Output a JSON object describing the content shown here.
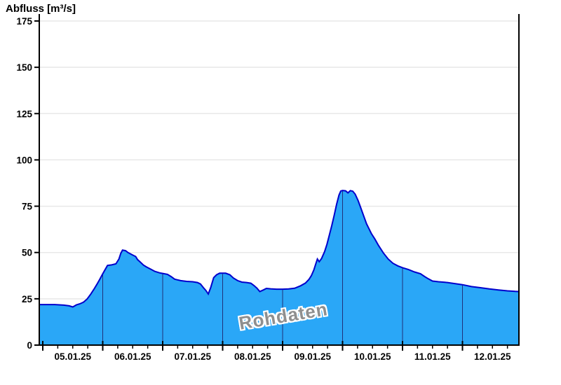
{
  "header": {
    "title": "Abfluss [m³/s]"
  },
  "watermark": {
    "text": "Rohdaten",
    "color": "#8f8f8f"
  },
  "chart_data": {
    "type": "area",
    "title": "Abfluss [m³/s]",
    "ylabel": "Abfluss [m³/s]",
    "xlabel": "",
    "ylim": [
      0,
      178
    ],
    "y_ticks": [
      0,
      25,
      50,
      75,
      100,
      125,
      150,
      175
    ],
    "x_tick_labels": [
      "05.01.25",
      "06.01.25",
      "07.01.25",
      "08.01.25",
      "09.01.25",
      "10.01.25",
      "11.01.25",
      "12.01.25"
    ],
    "x_range_days": [
      -0.06,
      7.94
    ],
    "grid": "horizontal-light",
    "legend": "none",
    "colors": {
      "fill": "#2aa7f7",
      "outline": "#0000cc",
      "day_line": "#20307a",
      "grid": "#e8e8e8",
      "axis": "#000000",
      "text": "#000000",
      "background": "#ffffff"
    },
    "series": [
      {
        "name": "Abfluss Rohdaten",
        "unit": "m³/s",
        "points": [
          [
            -0.06,
            21.9
          ],
          [
            0.05,
            21.9
          ],
          [
            0.2,
            21.9
          ],
          [
            0.35,
            21.6
          ],
          [
            0.44,
            21.2
          ],
          [
            0.5,
            20.6
          ],
          [
            0.56,
            21.7
          ],
          [
            0.62,
            22.3
          ],
          [
            0.68,
            23.2
          ],
          [
            0.74,
            24.9
          ],
          [
            0.8,
            27.5
          ],
          [
            0.85,
            30.0
          ],
          [
            0.9,
            32.6
          ],
          [
            0.95,
            35.5
          ],
          [
            1.0,
            38.5
          ],
          [
            1.04,
            40.8
          ],
          [
            1.08,
            43.0
          ],
          [
            1.15,
            43.3
          ],
          [
            1.22,
            43.9
          ],
          [
            1.27,
            46.5
          ],
          [
            1.3,
            49.5
          ],
          [
            1.33,
            51.3
          ],
          [
            1.38,
            51.0
          ],
          [
            1.42,
            50.0
          ],
          [
            1.5,
            48.6
          ],
          [
            1.55,
            47.8
          ],
          [
            1.58,
            46.2
          ],
          [
            1.62,
            45.0
          ],
          [
            1.68,
            43.2
          ],
          [
            1.73,
            42.2
          ],
          [
            1.8,
            41.0
          ],
          [
            1.87,
            39.8
          ],
          [
            1.95,
            39.0
          ],
          [
            2.0,
            38.7
          ],
          [
            2.08,
            38.2
          ],
          [
            2.14,
            37.0
          ],
          [
            2.2,
            35.6
          ],
          [
            2.3,
            34.8
          ],
          [
            2.4,
            34.4
          ],
          [
            2.5,
            34.2
          ],
          [
            2.58,
            33.8
          ],
          [
            2.63,
            33.0
          ],
          [
            2.68,
            31.0
          ],
          [
            2.72,
            29.5
          ],
          [
            2.76,
            27.6
          ],
          [
            2.8,
            31.0
          ],
          [
            2.85,
            36.4
          ],
          [
            2.9,
            38.0
          ],
          [
            2.95,
            38.8
          ],
          [
            3.05,
            38.8
          ],
          [
            3.12,
            38.0
          ],
          [
            3.18,
            36.2
          ],
          [
            3.25,
            34.8
          ],
          [
            3.32,
            34.0
          ],
          [
            3.4,
            33.8
          ],
          [
            3.47,
            33.4
          ],
          [
            3.52,
            32.2
          ],
          [
            3.57,
            30.8
          ],
          [
            3.62,
            28.9
          ],
          [
            3.68,
            29.8
          ],
          [
            3.73,
            30.6
          ],
          [
            3.8,
            30.4
          ],
          [
            3.9,
            30.2
          ],
          [
            4.0,
            30.2
          ],
          [
            4.1,
            30.3
          ],
          [
            4.2,
            30.7
          ],
          [
            4.3,
            32.0
          ],
          [
            4.38,
            33.5
          ],
          [
            4.44,
            35.5
          ],
          [
            4.48,
            37.5
          ],
          [
            4.52,
            40.5
          ],
          [
            4.55,
            43.5
          ],
          [
            4.58,
            46.5
          ],
          [
            4.61,
            45.0
          ],
          [
            4.65,
            46.8
          ],
          [
            4.7,
            50.5
          ],
          [
            4.74,
            54.5
          ],
          [
            4.78,
            59.5
          ],
          [
            4.82,
            64.5
          ],
          [
            4.86,
            70.0
          ],
          [
            4.9,
            76.0
          ],
          [
            4.94,
            81.0
          ],
          [
            4.97,
            83.2
          ],
          [
            5.0,
            83.5
          ],
          [
            5.05,
            83.3
          ],
          [
            5.09,
            82.2
          ],
          [
            5.13,
            83.4
          ],
          [
            5.17,
            83.1
          ],
          [
            5.21,
            81.5
          ],
          [
            5.26,
            78.0
          ],
          [
            5.3,
            74.5
          ],
          [
            5.35,
            70.0
          ],
          [
            5.4,
            65.5
          ],
          [
            5.44,
            62.9
          ],
          [
            5.48,
            60.3
          ],
          [
            5.54,
            57.2
          ],
          [
            5.6,
            53.8
          ],
          [
            5.68,
            49.8
          ],
          [
            5.76,
            46.5
          ],
          [
            5.84,
            44.2
          ],
          [
            5.92,
            42.8
          ],
          [
            6.0,
            41.8
          ],
          [
            6.1,
            40.8
          ],
          [
            6.2,
            39.5
          ],
          [
            6.3,
            38.5
          ],
          [
            6.37,
            37.0
          ],
          [
            6.43,
            35.8
          ],
          [
            6.5,
            34.6
          ],
          [
            6.6,
            34.2
          ],
          [
            6.75,
            33.8
          ],
          [
            6.88,
            33.2
          ],
          [
            7.0,
            32.6
          ],
          [
            7.15,
            31.6
          ],
          [
            7.3,
            31.0
          ],
          [
            7.45,
            30.3
          ],
          [
            7.6,
            29.8
          ],
          [
            7.75,
            29.3
          ],
          [
            7.88,
            29.0
          ],
          [
            7.94,
            28.9
          ]
        ]
      }
    ]
  }
}
